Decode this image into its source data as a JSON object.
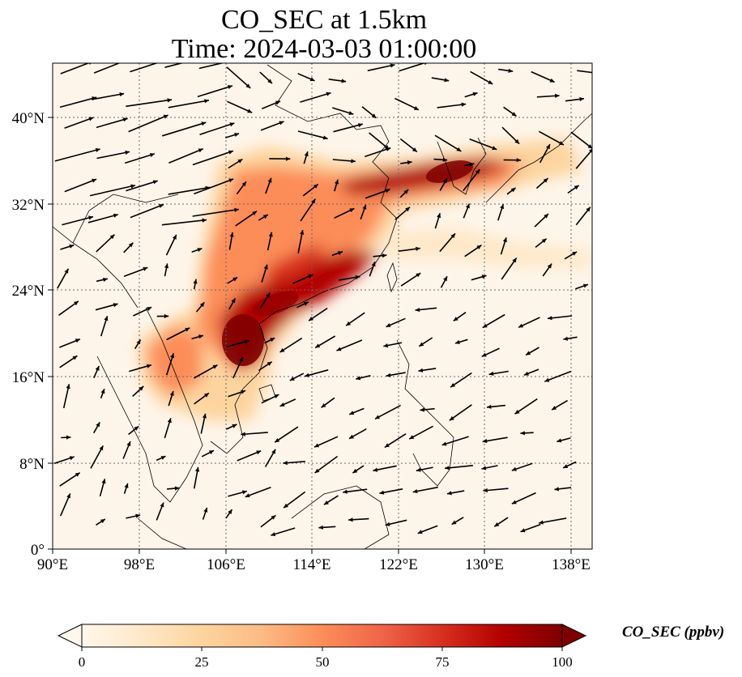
{
  "title_line1": "CO_SEC at 1.5km",
  "title_line2": "Time: 2024-03-03 01:00:00",
  "colorbar": {
    "label": "CO_SEC (ppbv)",
    "ticks": [
      "0",
      "25",
      "50",
      "75",
      "100"
    ],
    "range": [
      0,
      100
    ],
    "colormap": "OrRd",
    "colors": [
      "#fff7ec",
      "#fee8c8",
      "#fdd49e",
      "#fdbb84",
      "#fc8d59",
      "#ef6548",
      "#d7301f",
      "#b30000",
      "#7f0000"
    ]
  },
  "map": {
    "lon_ticks": [
      "90°E",
      "98°E",
      "106°E",
      "114°E",
      "122°E",
      "130°E",
      "138°E"
    ],
    "lat_ticks": [
      "0°",
      "8°N",
      "16°N",
      "24°N",
      "32°N",
      "40°N"
    ],
    "lon_range": [
      90,
      140
    ],
    "lat_range": [
      0,
      45
    ],
    "gridlines": "dotted",
    "coastline_color": "#000000",
    "vector_color": "#000000"
  }
}
